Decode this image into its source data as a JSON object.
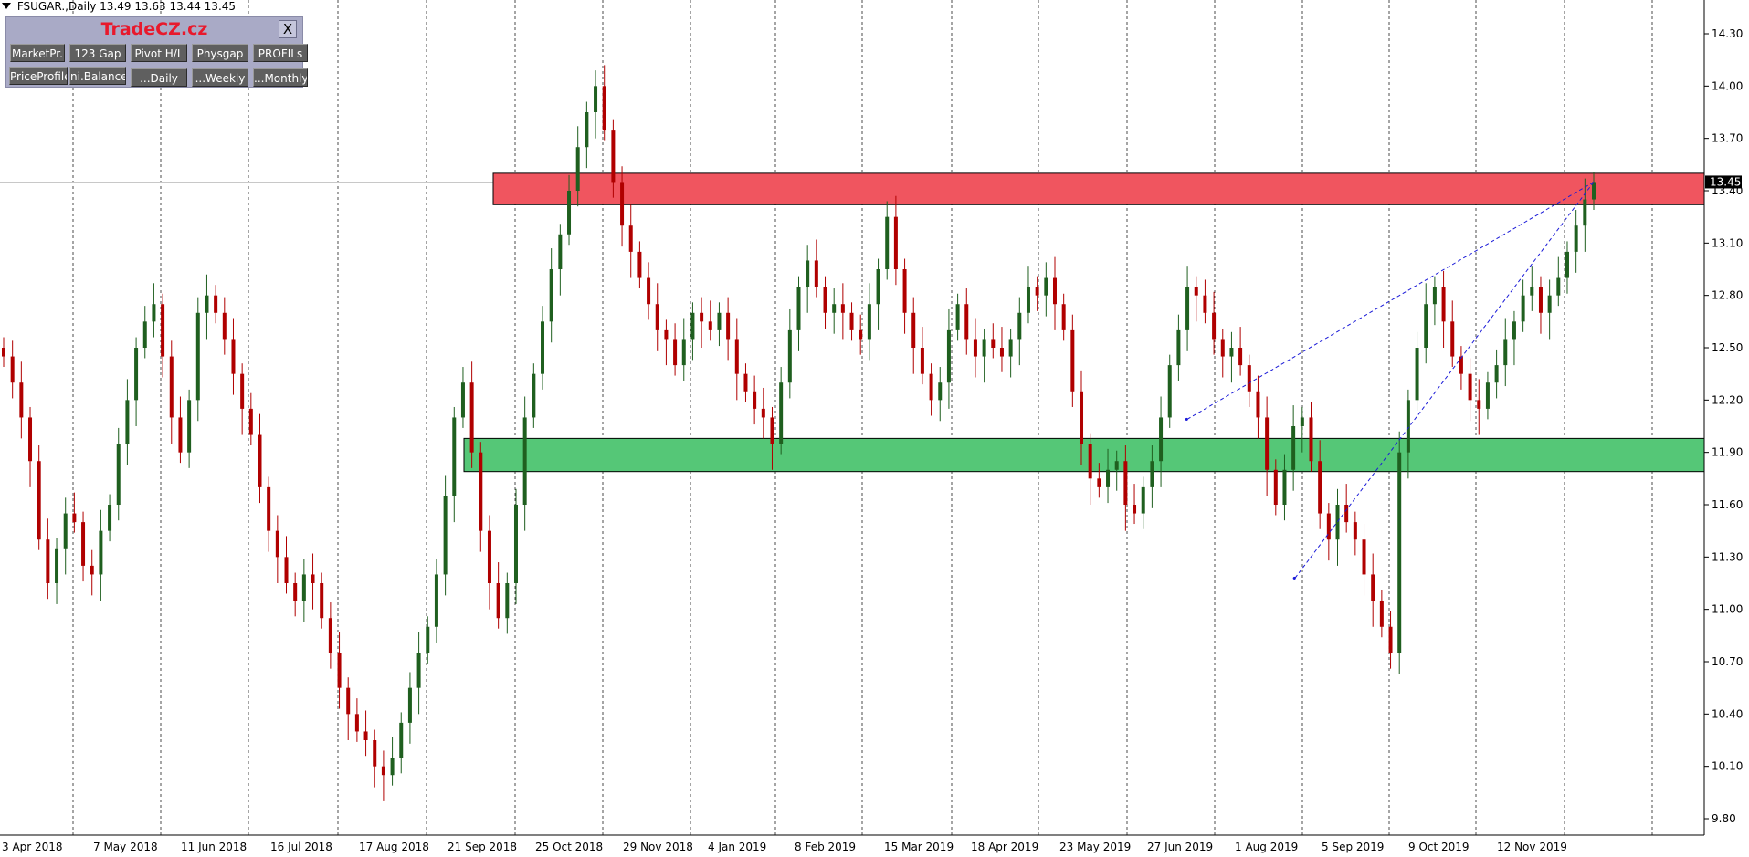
{
  "header": {
    "symbol": "FSUGAR.,Daily",
    "ohlc": "13.49 13.63 13.44 13.45"
  },
  "panel": {
    "title": "TradeCZ.cz",
    "close_label": "X",
    "row1": [
      "MarketPr.",
      "123 Gap",
      "Pivot H/L",
      "Physgap",
      "PROFILs"
    ],
    "row2": [
      "PriceProfile",
      "ni.Balance",
      "...Daily",
      "...Weekly",
      "...Monthly"
    ]
  },
  "colors": {
    "bull_candle": "#1f5f1f",
    "bear_candle": "#b00000",
    "resistance_zone": "#f0555f",
    "support_zone": "#55c777",
    "trendline": "#1a1ad8",
    "price_label_bg": "#000000"
  },
  "chart_data": {
    "type": "candlestick",
    "title": "FSUGAR.,Daily",
    "last_price": 13.45,
    "ylim": [
      9.72,
      14.4
    ],
    "y_ticks": [
      14.3,
      14.0,
      13.7,
      13.4,
      13.1,
      12.8,
      12.5,
      12.2,
      11.9,
      11.6,
      11.3,
      11.0,
      10.7,
      10.4,
      10.1,
      9.8
    ],
    "y_tick_labels": [
      "14.30",
      "14.00",
      "13.70",
      "13.40",
      "13.10",
      "12.80",
      "12.50",
      "12.20",
      "11.90",
      "11.60",
      "11.30",
      "11.00",
      "10.70",
      "10.40",
      "10.10",
      "9.80"
    ],
    "x_labels": [
      "3 Apr 2018",
      "7 May 2018",
      "11 Jun 2018",
      "16 Jul 2018",
      "17 Aug 2018",
      "21 Sep 2018",
      "25 Oct 2018",
      "29 Nov 2018",
      "4 Jan 2019",
      "8 Feb 2019",
      "15 Mar 2019",
      "18 Apr 2019",
      "23 May 2019",
      "27 Jun 2019",
      "1 Aug 2019",
      "5 Sep 2019",
      "9 Oct 2019",
      "12 Nov 2019"
    ],
    "zones": [
      {
        "name": "resistance",
        "from_date": "Sep 2018",
        "y_low": 13.32,
        "y_high": 13.5
      },
      {
        "name": "support",
        "from_date": "Sep 2018",
        "y_low": 11.79,
        "y_high": 11.98
      }
    ],
    "trendlines": [
      {
        "from": [
          "Jul 2019",
          12.09
        ],
        "to": [
          "Dec 2019",
          13.45
        ]
      },
      {
        "from": [
          "Aug 2019",
          11.18
        ],
        "to": [
          "Dec 2019",
          13.45
        ]
      }
    ],
    "closes": [
      12.45,
      12.3,
      12.1,
      11.85,
      11.4,
      11.15,
      11.35,
      11.55,
      11.5,
      11.25,
      11.2,
      11.45,
      11.6,
      11.95,
      12.2,
      12.5,
      12.65,
      12.75,
      12.45,
      12.1,
      11.9,
      12.2,
      12.7,
      12.8,
      12.7,
      12.55,
      12.35,
      12.15,
      12.0,
      11.7,
      11.45,
      11.3,
      11.15,
      11.05,
      11.2,
      11.15,
      10.95,
      10.75,
      10.55,
      10.4,
      10.3,
      10.25,
      10.1,
      10.05,
      10.15,
      10.35,
      10.55,
      10.75,
      10.9,
      11.2,
      11.65,
      12.1,
      12.3,
      11.9,
      11.45,
      11.15,
      10.95,
      11.15,
      11.6,
      12.1,
      12.35,
      12.65,
      12.95,
      13.15,
      13.4,
      13.65,
      13.85,
      14.0,
      13.75,
      13.45,
      13.2,
      13.05,
      12.9,
      12.75,
      12.6,
      12.55,
      12.4,
      12.55,
      12.7,
      12.65,
      12.6,
      12.7,
      12.55,
      12.35,
      12.25,
      12.15,
      12.1,
      11.95,
      12.3,
      12.6,
      12.85,
      13.0,
      12.85,
      12.7,
      12.75,
      12.7,
      12.6,
      12.55,
      12.75,
      12.95,
      13.25,
      12.95,
      12.7,
      12.5,
      12.35,
      12.2,
      12.3,
      12.6,
      12.75,
      12.55,
      12.45,
      12.55,
      12.5,
      12.45,
      12.55,
      12.7,
      12.85,
      12.8,
      12.9,
      12.75,
      12.6,
      12.25,
      11.95,
      11.75,
      11.7,
      11.8,
      11.85,
      11.6,
      11.55,
      11.7,
      11.85,
      12.1,
      12.4,
      12.6,
      12.85,
      12.8,
      12.7,
      12.55,
      12.45,
      12.5,
      12.4,
      12.25,
      12.1,
      11.8,
      11.6,
      11.8,
      12.05,
      12.1,
      11.85,
      11.55,
      11.4,
      11.6,
      11.5,
      11.4,
      11.2,
      11.05,
      10.9,
      10.75,
      11.9,
      12.2,
      12.5,
      12.75,
      12.85,
      12.65,
      12.45,
      12.35,
      12.2,
      12.15,
      12.3,
      12.4,
      12.55,
      12.65,
      12.8,
      12.85,
      12.7,
      12.8,
      12.9,
      13.05,
      13.2,
      13.35,
      13.45
    ]
  }
}
